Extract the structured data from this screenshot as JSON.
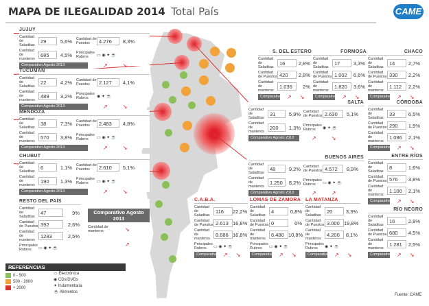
{
  "title": {
    "main": "MAPA DE ILEGALIDAD 2014",
    "sub": "Total País"
  },
  "logo": "CAME",
  "source": "Fuente: CAME",
  "labels": {
    "cant_saladitas": "Cantidad de Saladitas",
    "cant_puestos": "Cantidad de Puestos",
    "cant_manteros": "Cantidad de manteros",
    "principales_rubros": "Principales Rubros",
    "comparativo": "Comparativo Agosto 2013",
    "comparativo_short": "Comparativo Agosto 2013"
  },
  "provinces_left": [
    {
      "name": "JUJUY",
      "saladitas": "29",
      "pct1": "5,6%",
      "puestos": "4.276",
      "pct2": "8,3%",
      "manteros": "685",
      "pct3": "4,5%"
    },
    {
      "name": "TUCUMÁN",
      "saladitas": "22",
      "pct1": "4,2%",
      "puestos": "2.127",
      "pct2": "4,1%",
      "manteros": "489",
      "pct3": "3,2%"
    },
    {
      "name": "MENDOZA",
      "saladitas": "38",
      "pct1": "7,3%",
      "puestos": "2.483",
      "pct2": "4,8%",
      "manteros": "570",
      "pct3": "3,8%"
    },
    {
      "name": "CHUBUT",
      "saladitas": "6",
      "pct1": "1,1%",
      "puestos": "2.610",
      "pct2": "5,1%",
      "manteros": "190",
      "pct3": "1,3%"
    }
  ],
  "resto": {
    "name": "RESTO DEL PAÍS",
    "saladitas": "47",
    "pct1": "9%",
    "puestos": "392",
    "pct2": "2,6%",
    "manteros": "1283",
    "pct3": "2,5%",
    "comp_title": "Comparativo Agosto 2013"
  },
  "salta": {
    "name": "SALTA",
    "saladitas": "31",
    "pct1": "5,9%",
    "puestos": "2.630",
    "pct2": "5,1%",
    "manteros": "200",
    "pct3": "1,3%"
  },
  "buenos_aires": {
    "name": "BUENOS AIRES",
    "saladitas": "48",
    "pct1": "9,2%",
    "puestos": "4.572",
    "pct2": "8,9%",
    "manteros": "1.250",
    "pct3": "8,2%"
  },
  "small_top": [
    {
      "name": "S. DEL ESTERO",
      "v1": "16",
      "p1": "2,8%",
      "v2": "420",
      "p2": "2,8%",
      "v3": "1.036",
      "p3": "2%"
    },
    {
      "name": "FORMOSA",
      "v1": "17",
      "p1": "3,3%",
      "v2": "1.002",
      "p2": "6,6%",
      "v3": "1.820",
      "p3": "3,6%"
    },
    {
      "name": "CHACO",
      "v1": "14",
      "p1": "2,7%",
      "v2": "330",
      "p2": "2,2%",
      "v3": "1.112",
      "p3": "2,2%"
    }
  ],
  "small_right": [
    {
      "name": "CÓRDOBA",
      "v1": "33",
      "p1": "6,5%",
      "v2": "290",
      "p2": "1,9%",
      "v3": "1.086",
      "p3": "2,1%"
    },
    {
      "name": "ENTRE RÍOS",
      "v1": "8",
      "p1": "1,6%",
      "v2": "576",
      "p2": "3,8%",
      "v3": "1.100",
      "p3": "2,1%"
    },
    {
      "name": "RÍO NEGRO",
      "v1": "16",
      "p1": "2,9%",
      "v2": "680",
      "p2": "4,5%",
      "v3": "1.281",
      "p3": "2,5%"
    }
  ],
  "small_bottom": [
    {
      "name": "C.A.B.A.",
      "v1": "116",
      "p1": "22,2%",
      "v2": "2.613",
      "p2": "16,8%",
      "v3": "8.686",
      "p3": "16,8%"
    },
    {
      "name": "LOMAS DE ZAMORA",
      "v1": "4",
      "p1": "0,8%",
      "v2": "0",
      "p2": "0%",
      "v3": "6.480",
      "p3": "10,8%"
    },
    {
      "name": "LA MATANZA",
      "v1": "20",
      "p1": "3,3%",
      "v2": "3.000",
      "p2": "19,8%",
      "v3": "4.200",
      "p3": "8,1%"
    }
  ],
  "legend": {
    "title": "REFERENCIAS",
    "ranges": [
      {
        "label": "0 - 500",
        "color": "#8bbf5a"
      },
      {
        "label": "500 - 2000",
        "color": "#f2a23a"
      },
      {
        "label": "+ 2000",
        "color": "#d9302c"
      }
    ],
    "rubros": [
      "Electrónica",
      "CDs/DVDs",
      "Indumentaria",
      "Alimentos"
    ]
  }
}
